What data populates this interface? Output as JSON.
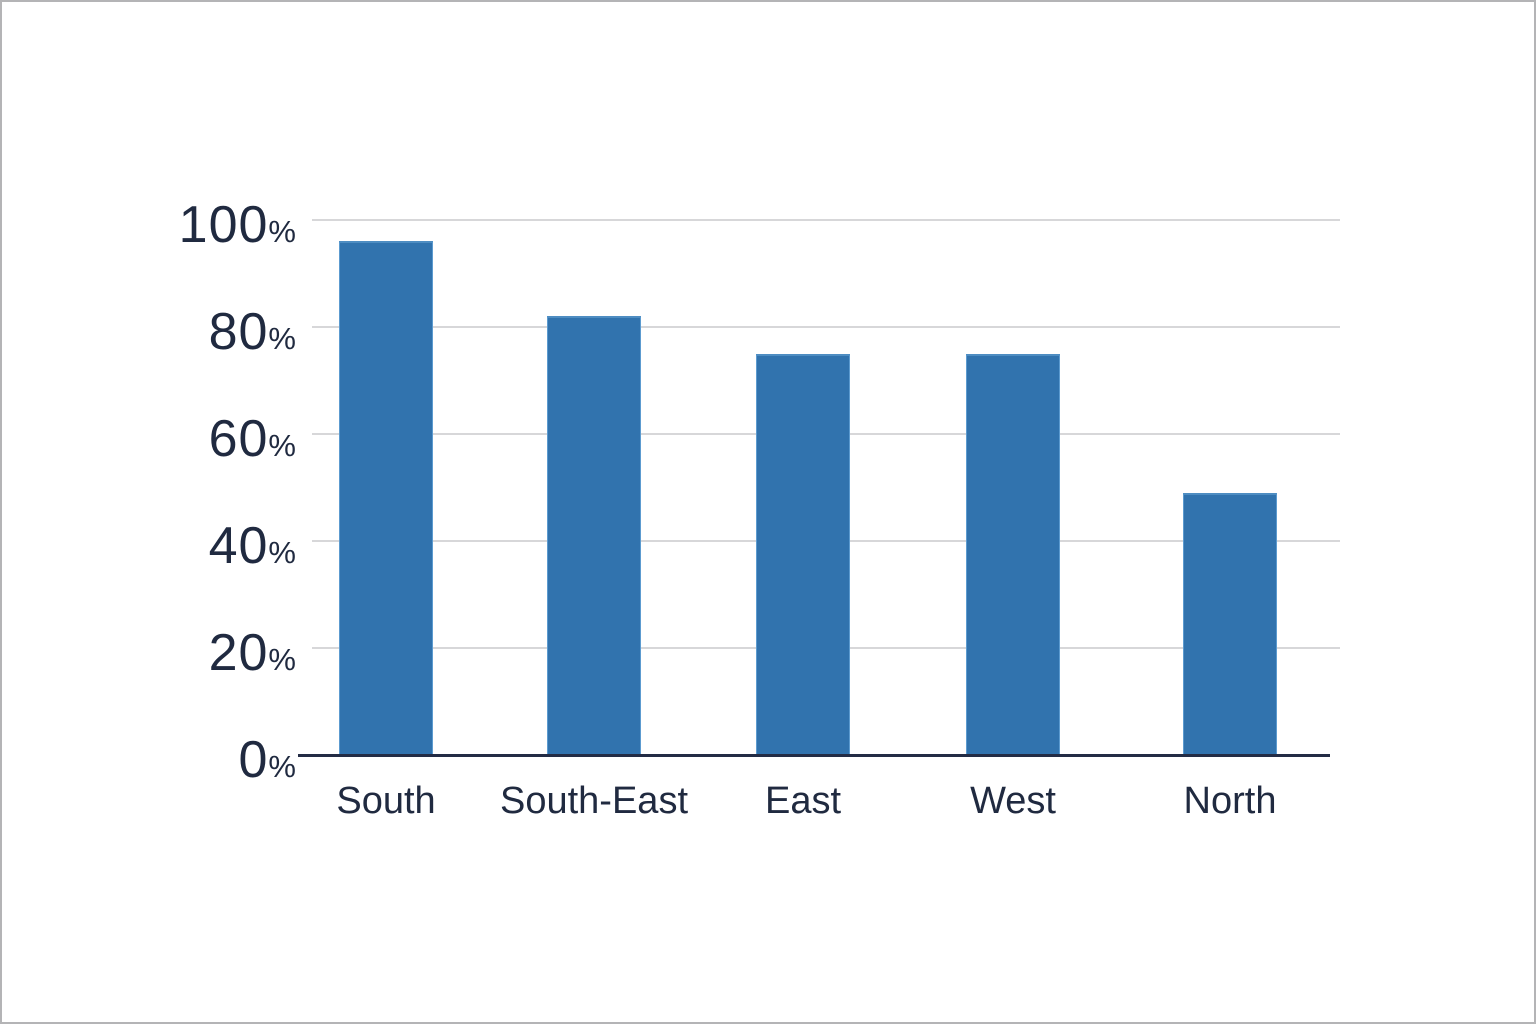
{
  "chart_data": {
    "type": "bar",
    "categories": [
      "South",
      "South-East",
      "East",
      "West",
      "North"
    ],
    "values": [
      96,
      82,
      75,
      75,
      49
    ],
    "value_unit": "%",
    "title": "",
    "xlabel": "",
    "ylabel": "",
    "ylim": [
      0,
      100
    ],
    "yticks": [
      100,
      80,
      60,
      40,
      20,
      0
    ],
    "ytick_suffix": "%",
    "grid": true,
    "legend": "none",
    "colors": {
      "bar": "#3173ae",
      "bar_edge": "#5c9bd0",
      "text": "#202a40",
      "gridline": "#d7d7d9",
      "axis_line": "#232c45",
      "background": "#ffffff",
      "frame_border": "#b4b4b6"
    }
  }
}
